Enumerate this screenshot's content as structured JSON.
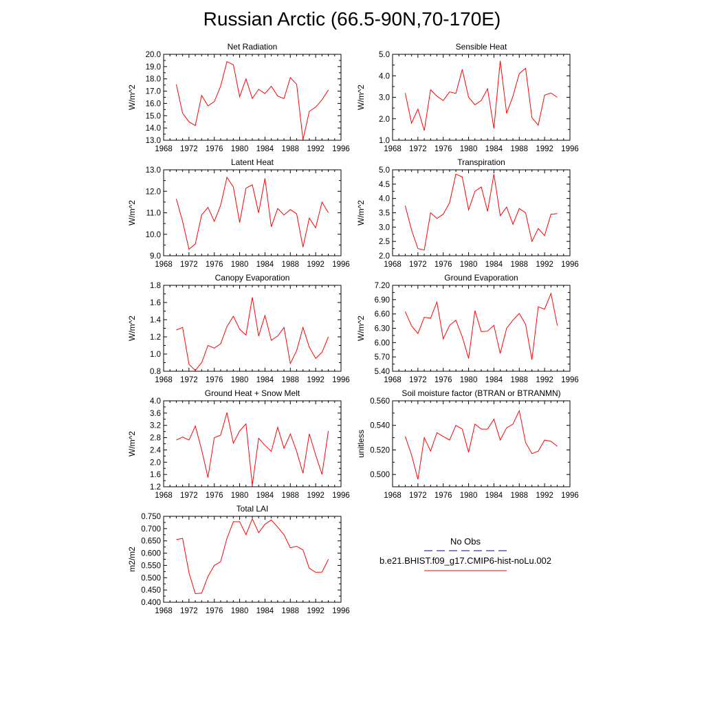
{
  "title": "Russian Arctic (66.5-90N,70-170E)",
  "legend": {
    "entries": [
      {
        "label": "No Obs",
        "color": "#000080",
        "dash": true
      },
      {
        "label": "b.e21.BHIST.f09_g17.CMIP6-hist-noLu.002",
        "color": "#ff0000",
        "dash": false
      }
    ]
  },
  "chart_data": [
    {
      "type": "line",
      "title": "Net Radiation",
      "ylabel": "W/m^2",
      "xlim": [
        1968,
        1996
      ],
      "ylim": [
        13.0,
        20.0
      ],
      "xticks": [
        1968,
        1972,
        1976,
        1980,
        1984,
        1988,
        1992,
        1996
      ],
      "yticks": [
        "13.0",
        "14.0",
        "15.0",
        "16.0",
        "17.0",
        "18.0",
        "19.0",
        "20.0"
      ],
      "color": "#ff0000",
      "x": [
        1970,
        1971,
        1972,
        1973,
        1974,
        1975,
        1976,
        1977,
        1978,
        1979,
        1980,
        1981,
        1982,
        1983,
        1984,
        1985,
        1986,
        1987,
        1988,
        1989,
        1990,
        1991,
        1992,
        1993,
        1994
      ],
      "values": [
        17.55,
        15.2,
        14.5,
        14.2,
        16.65,
        15.8,
        16.15,
        17.4,
        19.4,
        19.15,
        16.55,
        18.0,
        16.4,
        17.15,
        16.8,
        17.4,
        16.6,
        16.4,
        18.1,
        17.55,
        13.05,
        15.35,
        15.7,
        16.3,
        17.1
      ]
    },
    {
      "type": "line",
      "title": "Sensible Heat",
      "ylabel": "W/m^2",
      "xlim": [
        1968,
        1996
      ],
      "ylim": [
        1.0,
        5.0
      ],
      "xticks": [
        1968,
        1972,
        1976,
        1980,
        1984,
        1988,
        1992,
        1996
      ],
      "yticks": [
        "1.0",
        "2.0",
        "3.0",
        "4.0",
        "5.0"
      ],
      "color": "#ff0000",
      "x": [
        1970,
        1971,
        1972,
        1973,
        1974,
        1975,
        1976,
        1977,
        1978,
        1979,
        1980,
        1981,
        1982,
        1983,
        1984,
        1985,
        1986,
        1987,
        1988,
        1989,
        1990,
        1991,
        1992,
        1993,
        1994
      ],
      "values": [
        3.2,
        1.8,
        2.45,
        1.45,
        3.35,
        3.05,
        2.85,
        3.25,
        3.18,
        4.3,
        3.0,
        2.65,
        2.85,
        3.4,
        1.55,
        4.7,
        2.25,
        3.05,
        4.1,
        4.35,
        2.05,
        1.7,
        3.1,
        3.2,
        3.0
      ]
    },
    {
      "type": "line",
      "title": "Latent Heat",
      "ylabel": "W/m^2",
      "xlim": [
        1968,
        1996
      ],
      "ylim": [
        9.0,
        13.0
      ],
      "xticks": [
        1968,
        1972,
        1976,
        1980,
        1984,
        1988,
        1992,
        1996
      ],
      "yticks": [
        "9.0",
        "10.0",
        "11.0",
        "12.0",
        "13.0"
      ],
      "color": "#ff0000",
      "x": [
        1970,
        1971,
        1972,
        1973,
        1974,
        1975,
        1976,
        1977,
        1978,
        1979,
        1980,
        1981,
        1982,
        1983,
        1984,
        1985,
        1986,
        1987,
        1988,
        1989,
        1990,
        1991,
        1992,
        1993,
        1994
      ],
      "values": [
        11.65,
        10.6,
        9.3,
        9.55,
        10.9,
        11.25,
        10.6,
        11.35,
        12.65,
        12.2,
        10.55,
        12.15,
        12.3,
        11.0,
        12.6,
        10.35,
        11.2,
        10.9,
        11.15,
        10.95,
        9.4,
        10.75,
        10.3,
        11.5,
        11.0
      ]
    },
    {
      "type": "line",
      "title": "Transpiration",
      "ylabel": "W/m^2",
      "xlim": [
        1968,
        1996
      ],
      "ylim": [
        2.0,
        5.0
      ],
      "xticks": [
        1968,
        1972,
        1976,
        1980,
        1984,
        1988,
        1992,
        1996
      ],
      "yticks": [
        "2.0",
        "2.5",
        "3.0",
        "3.5",
        "4.0",
        "4.5",
        "5.0"
      ],
      "color": "#ff0000",
      "x": [
        1970,
        1971,
        1972,
        1973,
        1974,
        1975,
        1976,
        1977,
        1978,
        1979,
        1980,
        1981,
        1982,
        1983,
        1984,
        1985,
        1986,
        1987,
        1988,
        1989,
        1990,
        1991,
        1992,
        1993,
        1994
      ],
      "values": [
        3.75,
        2.9,
        2.25,
        2.2,
        3.5,
        3.3,
        3.45,
        3.85,
        4.85,
        4.75,
        3.6,
        4.25,
        4.4,
        3.55,
        4.85,
        3.4,
        3.7,
        3.1,
        3.65,
        3.5,
        2.5,
        2.95,
        2.7,
        3.45,
        3.47
      ]
    },
    {
      "type": "line",
      "title": "Canopy Evaporation",
      "ylabel": "W/m^2",
      "xlim": [
        1968,
        1996
      ],
      "ylim": [
        0.8,
        1.8
      ],
      "xticks": [
        1968,
        1972,
        1976,
        1980,
        1984,
        1988,
        1992,
        1996
      ],
      "yticks": [
        "0.8",
        "1.0",
        "1.2",
        "1.4",
        "1.6",
        "1.8"
      ],
      "color": "#ff0000",
      "x": [
        1970,
        1971,
        1972,
        1973,
        1974,
        1975,
        1976,
        1977,
        1978,
        1979,
        1980,
        1981,
        1982,
        1983,
        1984,
        1985,
        1986,
        1987,
        1988,
        1989,
        1990,
        1991,
        1992,
        1993,
        1994
      ],
      "values": [
        1.28,
        1.31,
        0.88,
        0.81,
        0.9,
        1.1,
        1.07,
        1.12,
        1.32,
        1.44,
        1.29,
        1.22,
        1.66,
        1.21,
        1.45,
        1.16,
        1.21,
        1.31,
        0.89,
        1.04,
        1.31,
        1.08,
        0.95,
        1.02,
        1.2
      ]
    },
    {
      "type": "line",
      "title": "Ground Evaporation",
      "ylabel": "W/m^2",
      "xlim": [
        1968,
        1996
      ],
      "ylim": [
        5.4,
        7.2
      ],
      "xticks": [
        1968,
        1972,
        1976,
        1980,
        1984,
        1988,
        1992,
        1996
      ],
      "yticks": [
        "5.40",
        "5.70",
        "6.00",
        "6.30",
        "6.60",
        "6.90",
        "7.20"
      ],
      "color": "#ff0000",
      "x": [
        1970,
        1971,
        1972,
        1973,
        1974,
        1975,
        1976,
        1977,
        1978,
        1979,
        1980,
        1981,
        1982,
        1983,
        1984,
        1985,
        1986,
        1987,
        1988,
        1989,
        1990,
        1991,
        1992,
        1993,
        1994
      ],
      "values": [
        6.65,
        6.35,
        6.19,
        6.53,
        6.51,
        6.85,
        6.08,
        6.36,
        6.47,
        6.12,
        5.67,
        6.67,
        6.23,
        6.24,
        6.36,
        5.77,
        6.3,
        6.47,
        6.61,
        6.38,
        5.64,
        6.75,
        6.7,
        7.03,
        6.36
      ]
    },
    {
      "type": "line",
      "title": "Ground Heat + Snow Melt",
      "ylabel": "W/m^2",
      "xlim": [
        1968,
        1996
      ],
      "ylim": [
        1.2,
        4.0
      ],
      "xticks": [
        1968,
        1972,
        1976,
        1980,
        1984,
        1988,
        1992,
        1996
      ],
      "yticks": [
        "1.2",
        "1.6",
        "2.0",
        "2.4",
        "2.8",
        "3.2",
        "3.6",
        "4.0"
      ],
      "color": "#ff0000",
      "x": [
        1970,
        1971,
        1972,
        1973,
        1974,
        1975,
        1976,
        1977,
        1978,
        1979,
        1980,
        1981,
        1982,
        1983,
        1984,
        1985,
        1986,
        1987,
        1988,
        1989,
        1990,
        1991,
        1992,
        1993,
        1994
      ],
      "values": [
        2.72,
        2.82,
        2.72,
        3.18,
        2.4,
        1.5,
        2.8,
        2.88,
        3.62,
        2.62,
        3.02,
        3.25,
        1.25,
        2.78,
        2.55,
        2.35,
        3.14,
        2.45,
        2.92,
        2.35,
        1.64,
        2.92,
        2.24,
        1.6,
        3.02
      ]
    },
    {
      "type": "line",
      "title": "Soil moisture factor (BTRAN or BTRANMN)",
      "ylabel": "unitless",
      "xlim": [
        1968,
        1996
      ],
      "ylim": [
        0.49,
        0.56
      ],
      "xticks": [
        1968,
        1972,
        1976,
        1980,
        1984,
        1988,
        1992,
        1996
      ],
      "yticks": [
        "0.500",
        "0.520",
        "0.540",
        "0.560"
      ],
      "ytick_values": [
        0.5,
        0.52,
        0.54,
        0.56
      ],
      "color": "#ff0000",
      "x": [
        1970,
        1971,
        1972,
        1973,
        1974,
        1975,
        1976,
        1977,
        1978,
        1979,
        1980,
        1981,
        1982,
        1983,
        1984,
        1985,
        1986,
        1987,
        1988,
        1989,
        1990,
        1991,
        1992,
        1993,
        1994
      ],
      "values": [
        0.531,
        0.516,
        0.496,
        0.53,
        0.519,
        0.534,
        0.531,
        0.528,
        0.54,
        0.537,
        0.518,
        0.541,
        0.537,
        0.537,
        0.545,
        0.528,
        0.538,
        0.541,
        0.552,
        0.526,
        0.517,
        0.519,
        0.528,
        0.527,
        0.523
      ]
    },
    {
      "type": "line",
      "title": "Total LAI",
      "ylabel": "m2/m2",
      "xlim": [
        1968,
        1996
      ],
      "ylim": [
        0.4,
        0.75
      ],
      "xticks": [
        1968,
        1972,
        1976,
        1980,
        1984,
        1988,
        1992,
        1996
      ],
      "yticks": [
        "0.400",
        "0.450",
        "0.500",
        "0.550",
        "0.600",
        "0.650",
        "0.700",
        "0.750"
      ],
      "color": "#ff0000",
      "x": [
        1970,
        1971,
        1972,
        1973,
        1974,
        1975,
        1976,
        1977,
        1978,
        1979,
        1980,
        1981,
        1982,
        1983,
        1984,
        1985,
        1986,
        1987,
        1988,
        1989,
        1990,
        1991,
        1992,
        1993,
        1994
      ],
      "values": [
        0.655,
        0.66,
        0.52,
        0.435,
        0.437,
        0.505,
        0.55,
        0.565,
        0.66,
        0.728,
        0.728,
        0.675,
        0.74,
        0.683,
        0.718,
        0.735,
        0.706,
        0.675,
        0.622,
        0.628,
        0.613,
        0.538,
        0.522,
        0.523,
        0.575
      ]
    }
  ]
}
